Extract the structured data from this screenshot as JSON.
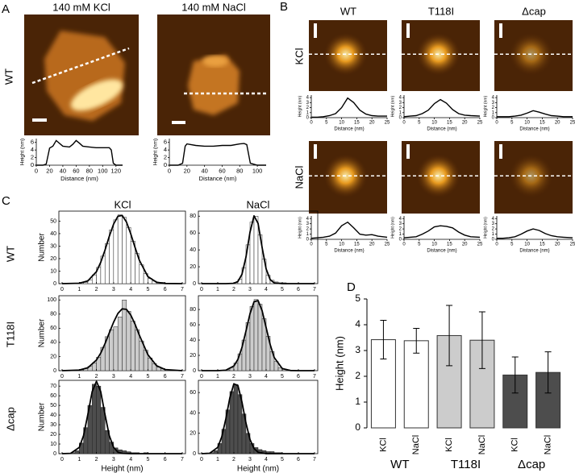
{
  "figure": {
    "panel_labels": [
      "A",
      "B",
      "C",
      "D"
    ],
    "a_columns": [
      "140 mM KCl",
      "140 mM NaCl"
    ],
    "a_row": "WT",
    "b_columns": [
      "WT",
      "T118I",
      "Δcap"
    ],
    "b_rows": [
      "KCl",
      "NaCl"
    ],
    "c_columns": [
      "KCl",
      "NaCl"
    ],
    "c_rows": [
      "WT",
      "T118I",
      "Δcap"
    ]
  },
  "chart_data": [
    {
      "type": "line",
      "color": "#000000",
      "xlabel": "Distance (nm)",
      "ylabel": "Height (nm)",
      "xlim": [
        0,
        130
      ],
      "ylim": [
        0,
        7
      ],
      "xticks": [
        0,
        20,
        40,
        60,
        80,
        100,
        120
      ],
      "yticks": [
        0,
        2,
        4,
        6
      ],
      "x": [
        0,
        10,
        15,
        20,
        25,
        30,
        40,
        50,
        55,
        60,
        65,
        70,
        80,
        90,
        100,
        110,
        113,
        116,
        120,
        130
      ],
      "values": [
        0,
        0,
        0.3,
        4.5,
        5,
        6.5,
        5,
        4.8,
        5.5,
        6.5,
        5.8,
        5,
        4.8,
        4.6,
        4.6,
        4.6,
        4,
        0.5,
        0,
        0
      ]
    },
    {
      "type": "line",
      "color": "#000000",
      "xlabel": "Distance (nm)",
      "ylabel": "Height (nm)",
      "xlim": [
        0,
        110
      ],
      "ylim": [
        0,
        7
      ],
      "xticks": [
        0,
        20,
        40,
        60,
        80,
        100
      ],
      "yticks": [
        0,
        2,
        4,
        6
      ],
      "x": [
        0,
        10,
        15,
        18,
        20,
        30,
        40,
        50,
        60,
        70,
        80,
        85,
        88,
        92,
        100,
        110
      ],
      "values": [
        0,
        0,
        0.5,
        5,
        5.6,
        5.2,
        5,
        5,
        5.2,
        5.2,
        5.6,
        5.7,
        5.4,
        0.5,
        0,
        0
      ]
    },
    {
      "type": "line",
      "color": "#000000",
      "xlabel": "Distance (nm)",
      "ylabel": "Height (nm)",
      "xlim": [
        0,
        25
      ],
      "ylim": [
        0,
        4.5
      ],
      "xticks": [
        0,
        5,
        10,
        15,
        20,
        25
      ],
      "yticks": [
        0,
        1,
        2,
        3,
        4
      ],
      "x": [
        0,
        2,
        4,
        6,
        8,
        10,
        12,
        14,
        16,
        18,
        20,
        22,
        25
      ],
      "values": [
        0.1,
        0.1,
        0.2,
        0.4,
        0.8,
        2,
        3.9,
        3,
        1.5,
        0.7,
        0.4,
        0.3,
        0.3
      ]
    },
    {
      "type": "line",
      "color": "#000000",
      "xlabel": "Distance (nm)",
      "ylabel": "Height (nm)",
      "xlim": [
        0,
        25
      ],
      "ylim": [
        0,
        4.5
      ],
      "xticks": [
        0,
        5,
        10,
        15,
        20,
        25
      ],
      "yticks": [
        0,
        1,
        2,
        3,
        4
      ],
      "x": [
        0,
        2,
        4,
        6,
        8,
        10,
        12,
        14,
        16,
        18,
        20,
        22,
        25
      ],
      "values": [
        0.2,
        0.3,
        0.4,
        0.8,
        1.5,
        2.8,
        3.6,
        2.9,
        1.6,
        0.8,
        0.5,
        0.4,
        0.3
      ]
    },
    {
      "type": "line",
      "color": "#000000",
      "xlabel": "Distance (nm)",
      "ylabel": "Height (nm)",
      "xlim": [
        0,
        25
      ],
      "ylim": [
        0,
        4.5
      ],
      "xticks": [
        0,
        5,
        10,
        15,
        20,
        25
      ],
      "yticks": [
        0,
        1,
        2,
        3,
        4
      ],
      "x": [
        0,
        2,
        4,
        6,
        8,
        10,
        12,
        14,
        16,
        18,
        20,
        22,
        25
      ],
      "values": [
        0.2,
        0.2,
        0.2,
        0.3,
        0.5,
        0.9,
        1.4,
        1.1,
        0.7,
        0.4,
        0.3,
        0.2,
        0.2
      ]
    },
    {
      "type": "line",
      "color": "#000000",
      "xlabel": "Distance (nm)",
      "ylabel": "Height (nm)",
      "xlim": [
        0,
        25
      ],
      "ylim": [
        0,
        4.5
      ],
      "xticks": [
        0,
        5,
        10,
        15,
        20,
        25
      ],
      "yticks": [
        0,
        1,
        2,
        3,
        4
      ],
      "x": [
        0,
        2,
        4,
        6,
        8,
        10,
        12,
        14,
        16,
        18,
        20,
        22,
        25
      ],
      "values": [
        0.2,
        0.3,
        0.4,
        0.6,
        1.2,
        2.6,
        3.3,
        2.2,
        1,
        0.8,
        0.9,
        0.6,
        0.4
      ]
    },
    {
      "type": "line",
      "color": "#000000",
      "xlabel": "Distance (nm)",
      "ylabel": "Height (nm)",
      "xlim": [
        0,
        25
      ],
      "ylim": [
        0,
        4.5
      ],
      "xticks": [
        0,
        5,
        10,
        15,
        20,
        25
      ],
      "yticks": [
        0,
        1,
        2,
        3,
        4
      ],
      "x": [
        0,
        2,
        4,
        6,
        8,
        10,
        12,
        14,
        16,
        18,
        20,
        22,
        25
      ],
      "values": [
        0.3,
        0.4,
        0.5,
        1,
        1.6,
        2.4,
        2.6,
        2.5,
        2.2,
        1.4,
        0.8,
        0.5,
        0.4
      ]
    },
    {
      "type": "line",
      "color": "#000000",
      "xlabel": "Distance (nm)",
      "ylabel": "Height (nm)",
      "xlim": [
        0,
        25
      ],
      "ylim": [
        0,
        4.5
      ],
      "xticks": [
        0,
        5,
        10,
        15,
        20,
        25
      ],
      "yticks": [
        0,
        1,
        2,
        3,
        4
      ],
      "x": [
        0,
        2,
        4,
        6,
        8,
        10,
        12,
        14,
        16,
        18,
        20,
        22,
        25
      ],
      "values": [
        0.2,
        0.2,
        0.3,
        0.5,
        1,
        1.6,
        2,
        1.7,
        1.1,
        0.7,
        0.5,
        0.4,
        0.3
      ]
    },
    {
      "type": "histogram",
      "color": "#ffffff",
      "ylabel": "Number",
      "xlim": [
        0,
        7
      ],
      "ylim": [
        0,
        58
      ],
      "xticks": [
        0,
        1,
        2,
        3,
        4,
        5,
        6,
        7
      ],
      "yticks": [
        0,
        10,
        20,
        30,
        40,
        50
      ],
      "bins": [
        0.5,
        0.75,
        1,
        1.25,
        1.5,
        1.75,
        2,
        2.25,
        2.5,
        2.75,
        3,
        3.25,
        3.5,
        3.75,
        4,
        4.25,
        4.5,
        4.75,
        5,
        5.25,
        5.5,
        5.75,
        6,
        6.25,
        6.5
      ],
      "counts": [
        0,
        0,
        1,
        1,
        3,
        7,
        13,
        22,
        32,
        43,
        51,
        55,
        53,
        45,
        34,
        24,
        15,
        8,
        4,
        2,
        1,
        1,
        0,
        0
      ],
      "fit": {
        "x": [
          0,
          1,
          1.5,
          2,
          2.25,
          2.5,
          2.75,
          3,
          3.25,
          3.5,
          3.75,
          4,
          4.25,
          4.5,
          5,
          5.5,
          6,
          7
        ],
        "values": [
          0,
          0.3,
          2.2,
          9.6,
          17.1,
          26.8,
          37.8,
          47.7,
          53.9,
          54.5,
          49.3,
          39.9,
          28.9,
          18.7,
          5.6,
          1.1,
          0.1,
          0
        ]
      }
    },
    {
      "type": "histogram",
      "color": "#ffffff",
      "xlim": [
        0,
        7
      ],
      "ylim": [
        0,
        86
      ],
      "xticks": [
        0,
        1,
        2,
        3,
        4,
        5,
        6,
        7
      ],
      "yticks": [
        0,
        20,
        40,
        60,
        80
      ],
      "bins": [
        0.5,
        0.75,
        1,
        1.25,
        1.5,
        1.75,
        2,
        2.25,
        2.5,
        2.75,
        3,
        3.25,
        3.5,
        3.75,
        4,
        4.25,
        4.5,
        4.75,
        5,
        5.25,
        5.5,
        5.75,
        6,
        6.25,
        6.5
      ],
      "counts": [
        0,
        0,
        0,
        0,
        0,
        0,
        1,
        5,
        19,
        46,
        73,
        80,
        58,
        29,
        10,
        4,
        2,
        1,
        1,
        0,
        0,
        0,
        0,
        0
      ],
      "fit": {
        "x": [
          0,
          1,
          1.5,
          2,
          2.25,
          2.5,
          2.75,
          3,
          3.25,
          3.5,
          3.75,
          4,
          4.25,
          4.5,
          5,
          5.5,
          6,
          7
        ],
        "values": [
          0,
          0,
          0,
          0.4,
          2.6,
          11,
          31.5,
          61.1,
          80.4,
          71.5,
          43,
          17.5,
          4.8,
          0.9,
          0,
          0,
          0,
          0
        ]
      }
    },
    {
      "type": "histogram",
      "color": "#cccccc",
      "ylabel": "Number",
      "xlim": [
        0,
        7
      ],
      "ylim": [
        0,
        106
      ],
      "xticks": [
        0,
        1,
        2,
        3,
        4,
        5,
        6,
        7
      ],
      "yticks": [
        0,
        20,
        40,
        60,
        80,
        100
      ],
      "bins": [
        0.5,
        0.75,
        1,
        1.25,
        1.5,
        1.75,
        2,
        2.25,
        2.5,
        2.75,
        3,
        3.25,
        3.5,
        3.75,
        4,
        4.25,
        4.5,
        4.75,
        5,
        5.25,
        5.5,
        5.75,
        6,
        6.25,
        6.5
      ],
      "counts": [
        0,
        0,
        1,
        3,
        6,
        11,
        19,
        33,
        48,
        58,
        62,
        76,
        100,
        84,
        70,
        58,
        42,
        29,
        18,
        10,
        5,
        3,
        1,
        1
      ],
      "fit": {
        "x": [
          0,
          1,
          1.5,
          2,
          2.25,
          2.5,
          2.75,
          3,
          3.25,
          3.5,
          3.75,
          4,
          4.25,
          4.5,
          5,
          5.5,
          6,
          7
        ],
        "values": [
          0,
          0.8,
          4.1,
          15,
          24.9,
          38.2,
          53.4,
          68.6,
          80.9,
          87.4,
          86.7,
          78.8,
          65.6,
          50.1,
          22.6,
          7.1,
          1.6,
          0
        ]
      }
    },
    {
      "type": "histogram",
      "color": "#cccccc",
      "xlim": [
        0,
        7
      ],
      "ylim": [
        0,
        98
      ],
      "xticks": [
        0,
        1,
        2,
        3,
        4,
        5,
        6,
        7
      ],
      "yticks": [
        0,
        20,
        40,
        60,
        80
      ],
      "bins": [
        0.5,
        0.75,
        1,
        1.25,
        1.5,
        1.75,
        2,
        2.25,
        2.5,
        2.75,
        3,
        3.25,
        3.5,
        3.75,
        4,
        4.25,
        4.5,
        4.75,
        5,
        5.25,
        5.5,
        5.75,
        6,
        6.25,
        6.5
      ],
      "counts": [
        0,
        0,
        0,
        0,
        1,
        4,
        10,
        22,
        40,
        63,
        84,
        93,
        87,
        68,
        45,
        25,
        12,
        4,
        2,
        1,
        0,
        0,
        0,
        0
      ],
      "fit": {
        "x": [
          0,
          1,
          1.5,
          2,
          2.25,
          2.5,
          2.75,
          3,
          3.25,
          3.5,
          3.75,
          4,
          4.25,
          4.5,
          5,
          5.5,
          6,
          7
        ],
        "values": [
          0,
          0,
          0.6,
          6.1,
          14.8,
          30.2,
          51.8,
          74.5,
          90.1,
          91.7,
          78.5,
          56.4,
          34.2,
          17.3,
          2.7,
          0.2,
          0,
          0
        ]
      }
    },
    {
      "type": "histogram",
      "color": "#4d4d4d",
      "ylabel": "Number",
      "xlabel": "Height (nm)",
      "xlim": [
        0,
        7
      ],
      "ylim": [
        0,
        76
      ],
      "xticks": [
        0,
        1,
        2,
        3,
        4,
        5,
        6,
        7
      ],
      "yticks": [
        0,
        10,
        20,
        30,
        40,
        50,
        60,
        70
      ],
      "bins": [
        0.5,
        0.75,
        1,
        1.25,
        1.5,
        1.75,
        2,
        2.25,
        2.5,
        2.75,
        3,
        3.25,
        3.5,
        3.75,
        4,
        4.25,
        4.5,
        4.75,
        5,
        5.25,
        5.5,
        5.75,
        6,
        6.25,
        6.5
      ],
      "counts": [
        1,
        3,
        11,
        27,
        50,
        72,
        70,
        48,
        24,
        12,
        6,
        4,
        3,
        2,
        1,
        1,
        0,
        1,
        0,
        0,
        0,
        0,
        0,
        0
      ],
      "fit": {
        "x": [
          0,
          0.5,
          1,
          1.25,
          1.5,
          1.75,
          2,
          2.25,
          2.5,
          2.75,
          3,
          3.25,
          3.5,
          4,
          5,
          6,
          7
        ],
        "values": [
          0,
          0.3,
          6.4,
          18.7,
          40.6,
          64.3,
          75,
          64.3,
          40.6,
          18.7,
          6.4,
          1.6,
          0.3,
          0,
          0,
          0,
          0
        ]
      }
    },
    {
      "type": "histogram",
      "color": "#4d4d4d",
      "xlabel": "Height (nm)",
      "xlim": [
        0,
        7
      ],
      "ylim": [
        0,
        72
      ],
      "xticks": [
        0,
        1,
        2,
        3,
        4,
        5,
        6,
        7
      ],
      "yticks": [
        0,
        20,
        40,
        60
      ],
      "bins": [
        0.5,
        0.75,
        1,
        1.25,
        1.5,
        1.75,
        2,
        2.25,
        2.5,
        2.75,
        3,
        3.25,
        3.5,
        3.75,
        4,
        4.25,
        4.5,
        4.75,
        5,
        5.25,
        5.5,
        5.75,
        6,
        6.25,
        6.5
      ],
      "counts": [
        1,
        3,
        10,
        24,
        43,
        61,
        68,
        58,
        39,
        20,
        10,
        6,
        4,
        3,
        2,
        2,
        1,
        1,
        0,
        0,
        0,
        0,
        0,
        0
      ],
      "fit": {
        "x": [
          0,
          0.5,
          1,
          1.25,
          1.5,
          1.75,
          2,
          2.25,
          2.5,
          2.75,
          3,
          3.25,
          3.5,
          4,
          5,
          6,
          7
        ],
        "values": [
          0,
          0.4,
          6.2,
          16.5,
          34.1,
          54.8,
          68.6,
          66.9,
          50.8,
          30.1,
          13.9,
          5,
          1.4,
          0,
          0,
          0,
          0
        ]
      }
    },
    {
      "type": "bar",
      "ylabel": "Height (nm)",
      "ylim": [
        0,
        5
      ],
      "yticks": [
        0,
        1,
        2,
        3,
        4,
        5
      ],
      "categories": [
        "KCl",
        "NaCl",
        "KCl",
        "NaCl",
        "KCl",
        "NaCl"
      ],
      "groups": [
        "WT",
        "T118I",
        "Δcap"
      ],
      "values": [
        3.42,
        3.38,
        3.58,
        3.4,
        2.05,
        2.15
      ],
      "errors": [
        0.75,
        0.48,
        1.17,
        1.1,
        0.7,
        0.8
      ],
      "colors": [
        "#ffffff",
        "#ffffff",
        "#cccccc",
        "#cccccc",
        "#4d4d4d",
        "#4d4d4d"
      ]
    }
  ]
}
